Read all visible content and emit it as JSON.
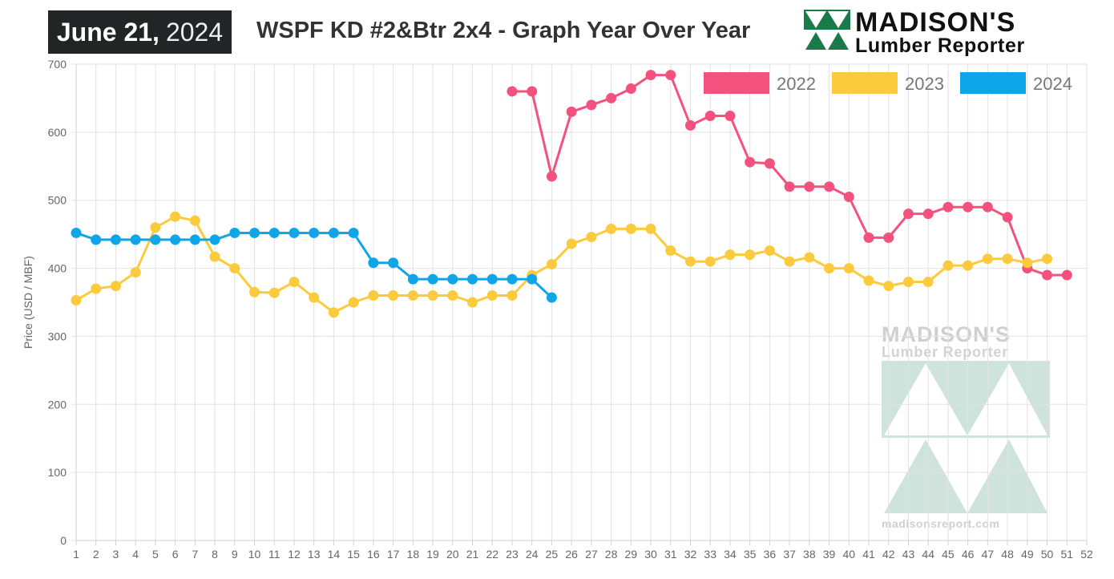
{
  "header": {
    "date_month_day": "June 21,",
    "date_year": "2024",
    "title": "WSPF KD #2&Btr 2x4 - Graph Year Over Year",
    "brand_name": "MADISON'S",
    "brand_sub": "Lumber Reporter"
  },
  "watermark": {
    "name": "MADISON'S",
    "sub": "Lumber Reporter",
    "url": "madisonsreport.com"
  },
  "chart_data": {
    "type": "line",
    "title": "WSPF KD #2&Btr 2x4 - Graph Year Over Year",
    "xlabel": "",
    "ylabel": "Price (USD / MBF)",
    "x": [
      1,
      2,
      3,
      4,
      5,
      6,
      7,
      8,
      9,
      10,
      11,
      12,
      13,
      14,
      15,
      16,
      17,
      18,
      19,
      20,
      21,
      22,
      23,
      24,
      25,
      26,
      27,
      28,
      29,
      30,
      31,
      32,
      33,
      34,
      35,
      36,
      37,
      38,
      39,
      40,
      41,
      42,
      43,
      44,
      45,
      46,
      47,
      48,
      49,
      50,
      51,
      52
    ],
    "ylim": [
      0,
      700
    ],
    "yticks": [
      0,
      100,
      200,
      300,
      400,
      500,
      600,
      700
    ],
    "grid": true,
    "legend_position": "top-right",
    "series": [
      {
        "name": "2022",
        "color": "#f4527e",
        "values": [
          null,
          null,
          null,
          null,
          null,
          null,
          null,
          null,
          null,
          null,
          null,
          null,
          null,
          null,
          null,
          null,
          null,
          null,
          null,
          null,
          null,
          null,
          660,
          660,
          535,
          630,
          640,
          650,
          664,
          684,
          684,
          610,
          624,
          624,
          556,
          554,
          520,
          520,
          520,
          505,
          445,
          445,
          480,
          480,
          490,
          490,
          490,
          475,
          400,
          390,
          390,
          null
        ]
      },
      {
        "name": "2023",
        "color": "#fcca3d",
        "values": [
          353,
          370,
          374,
          394,
          460,
          476,
          470,
          417,
          400,
          365,
          364,
          380,
          357,
          335,
          350,
          360,
          360,
          360,
          360,
          360,
          350,
          360,
          360,
          390,
          406,
          436,
          446,
          458,
          458,
          458,
          426,
          410,
          410,
          420,
          420,
          426,
          410,
          416,
          400,
          400,
          382,
          374,
          380,
          380,
          404,
          404,
          414,
          414,
          408,
          414,
          null,
          null
        ]
      },
      {
        "name": "2024",
        "color": "#0ea5e9",
        "values": [
          452,
          442,
          442,
          442,
          442,
          442,
          442,
          442,
          452,
          452,
          452,
          452,
          452,
          452,
          452,
          408,
          408,
          384,
          384,
          384,
          384,
          384,
          384,
          384,
          357,
          null,
          null,
          null,
          null,
          null,
          null,
          null,
          null,
          null,
          null,
          null,
          null,
          null,
          null,
          null,
          null,
          null,
          null,
          null,
          null,
          null,
          null,
          null,
          null,
          null,
          null,
          null
        ]
      }
    ]
  }
}
